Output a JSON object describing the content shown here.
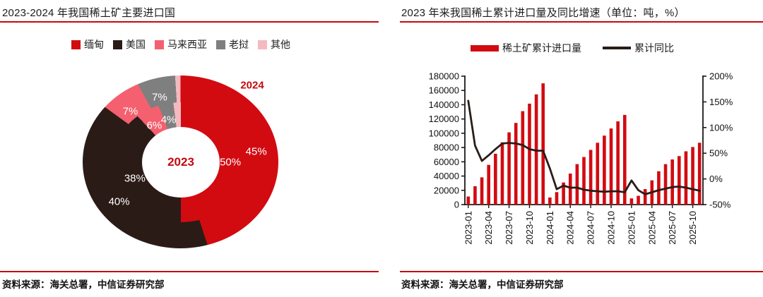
{
  "colors": {
    "accent_red": "#d20b11",
    "rule_red": "#c40a10",
    "ink": "#1a1a1a"
  },
  "left_panel": {
    "title": "2023-2024 年我国稀土矿主要进口国",
    "source": "资料来源：海关总署，中信证券研究部",
    "center_year_label": "2023",
    "outer_year_label": "2024",
    "chart_data": {
      "type": "pie",
      "subtype": "double-donut",
      "title": "2023-2024 年我国稀土矿主要进口国",
      "categories": [
        "缅甸",
        "美国",
        "马来西亚",
        "老挝",
        "其他"
      ],
      "colors": [
        "#d20b11",
        "#2b1b17",
        "#f4606f",
        "#7f7f7f",
        "#f5b9c0"
      ],
      "legend_position": "top",
      "rings": [
        {
          "name": "2023",
          "position": "inner",
          "values": [
            50,
            38,
            6,
            4,
            2
          ],
          "labels": [
            "50%",
            "38%",
            "6%",
            "4%",
            ""
          ]
        },
        {
          "name": "2024",
          "position": "outer",
          "values": [
            45,
            40,
            7,
            7,
            1
          ],
          "labels": [
            "45%",
            "40%",
            "7%",
            "7%",
            ""
          ]
        }
      ]
    }
  },
  "right_panel": {
    "title": "2023 年来我国稀土累计进口量及同比增速（单位：吨，%）",
    "source": "资料来源：海关总署，中信证券研究部",
    "legend": [
      {
        "label": "稀土矿累计进口量",
        "marker": "bar",
        "color": "#d20b11"
      },
      {
        "label": "累计同比",
        "marker": "line",
        "color": "#2b1b17"
      }
    ],
    "chart_data": {
      "type": "bar",
      "combo": "bar+line",
      "title": "2023 年来我国稀土累计进口量及同比增速（单位：吨，%）",
      "ink": "#1a1a1a",
      "grid": false,
      "x": [
        "2023-01",
        "2023-02",
        "2023-03",
        "2023-04",
        "2023-05",
        "2023-06",
        "2023-07",
        "2023-08",
        "2023-09",
        "2023-10",
        "2023-11",
        "2023-12",
        "2024-01",
        "2024-02",
        "2024-03",
        "2024-04",
        "2024-05",
        "2024-06",
        "2024-07",
        "2024-08",
        "2024-09",
        "2024-10",
        "2024-11",
        "2024-12",
        "2025-01",
        "2025-02",
        "2025-03",
        "2025-04",
        "2025-05",
        "2025-06",
        "2025-07",
        "2025-08",
        "2025-09",
        "2025-10",
        "2025-11"
      ],
      "x_tick_every": 3,
      "left_axis": {
        "min": 0,
        "max": 180000,
        "step": 20000,
        "unit": "吨"
      },
      "right_axis": {
        "min": -50,
        "max": 200,
        "step": 50,
        "unit": "%"
      },
      "series": [
        {
          "name": "稀土矿累计进口量",
          "type": "bar",
          "axis": "left",
          "color": "#d20b11",
          "values": [
            11300,
            25700,
            38200,
            55700,
            71300,
            87300,
            101300,
            114500,
            131000,
            141500,
            154500,
            170000,
            10000,
            17500,
            31000,
            43500,
            56700,
            66700,
            76700,
            86700,
            96700,
            106700,
            116700,
            125700,
            8700,
            12300,
            21700,
            34000,
            46700,
            56700,
            63300,
            68000,
            74700,
            80700,
            86700
          ]
        },
        {
          "name": "累计同比",
          "type": "line",
          "axis": "right",
          "color": "#2b1b17",
          "values": [
            152,
            65,
            35,
            46,
            58,
            69,
            70,
            69,
            66,
            58,
            55,
            55,
            20,
            -20,
            -13,
            -17,
            -17,
            -21,
            -23,
            -24,
            -25,
            -24,
            -24,
            -26,
            -3,
            -22,
            -30,
            -26,
            -22,
            -19,
            -16,
            -15,
            -17,
            -20,
            -23
          ]
        }
      ]
    }
  }
}
